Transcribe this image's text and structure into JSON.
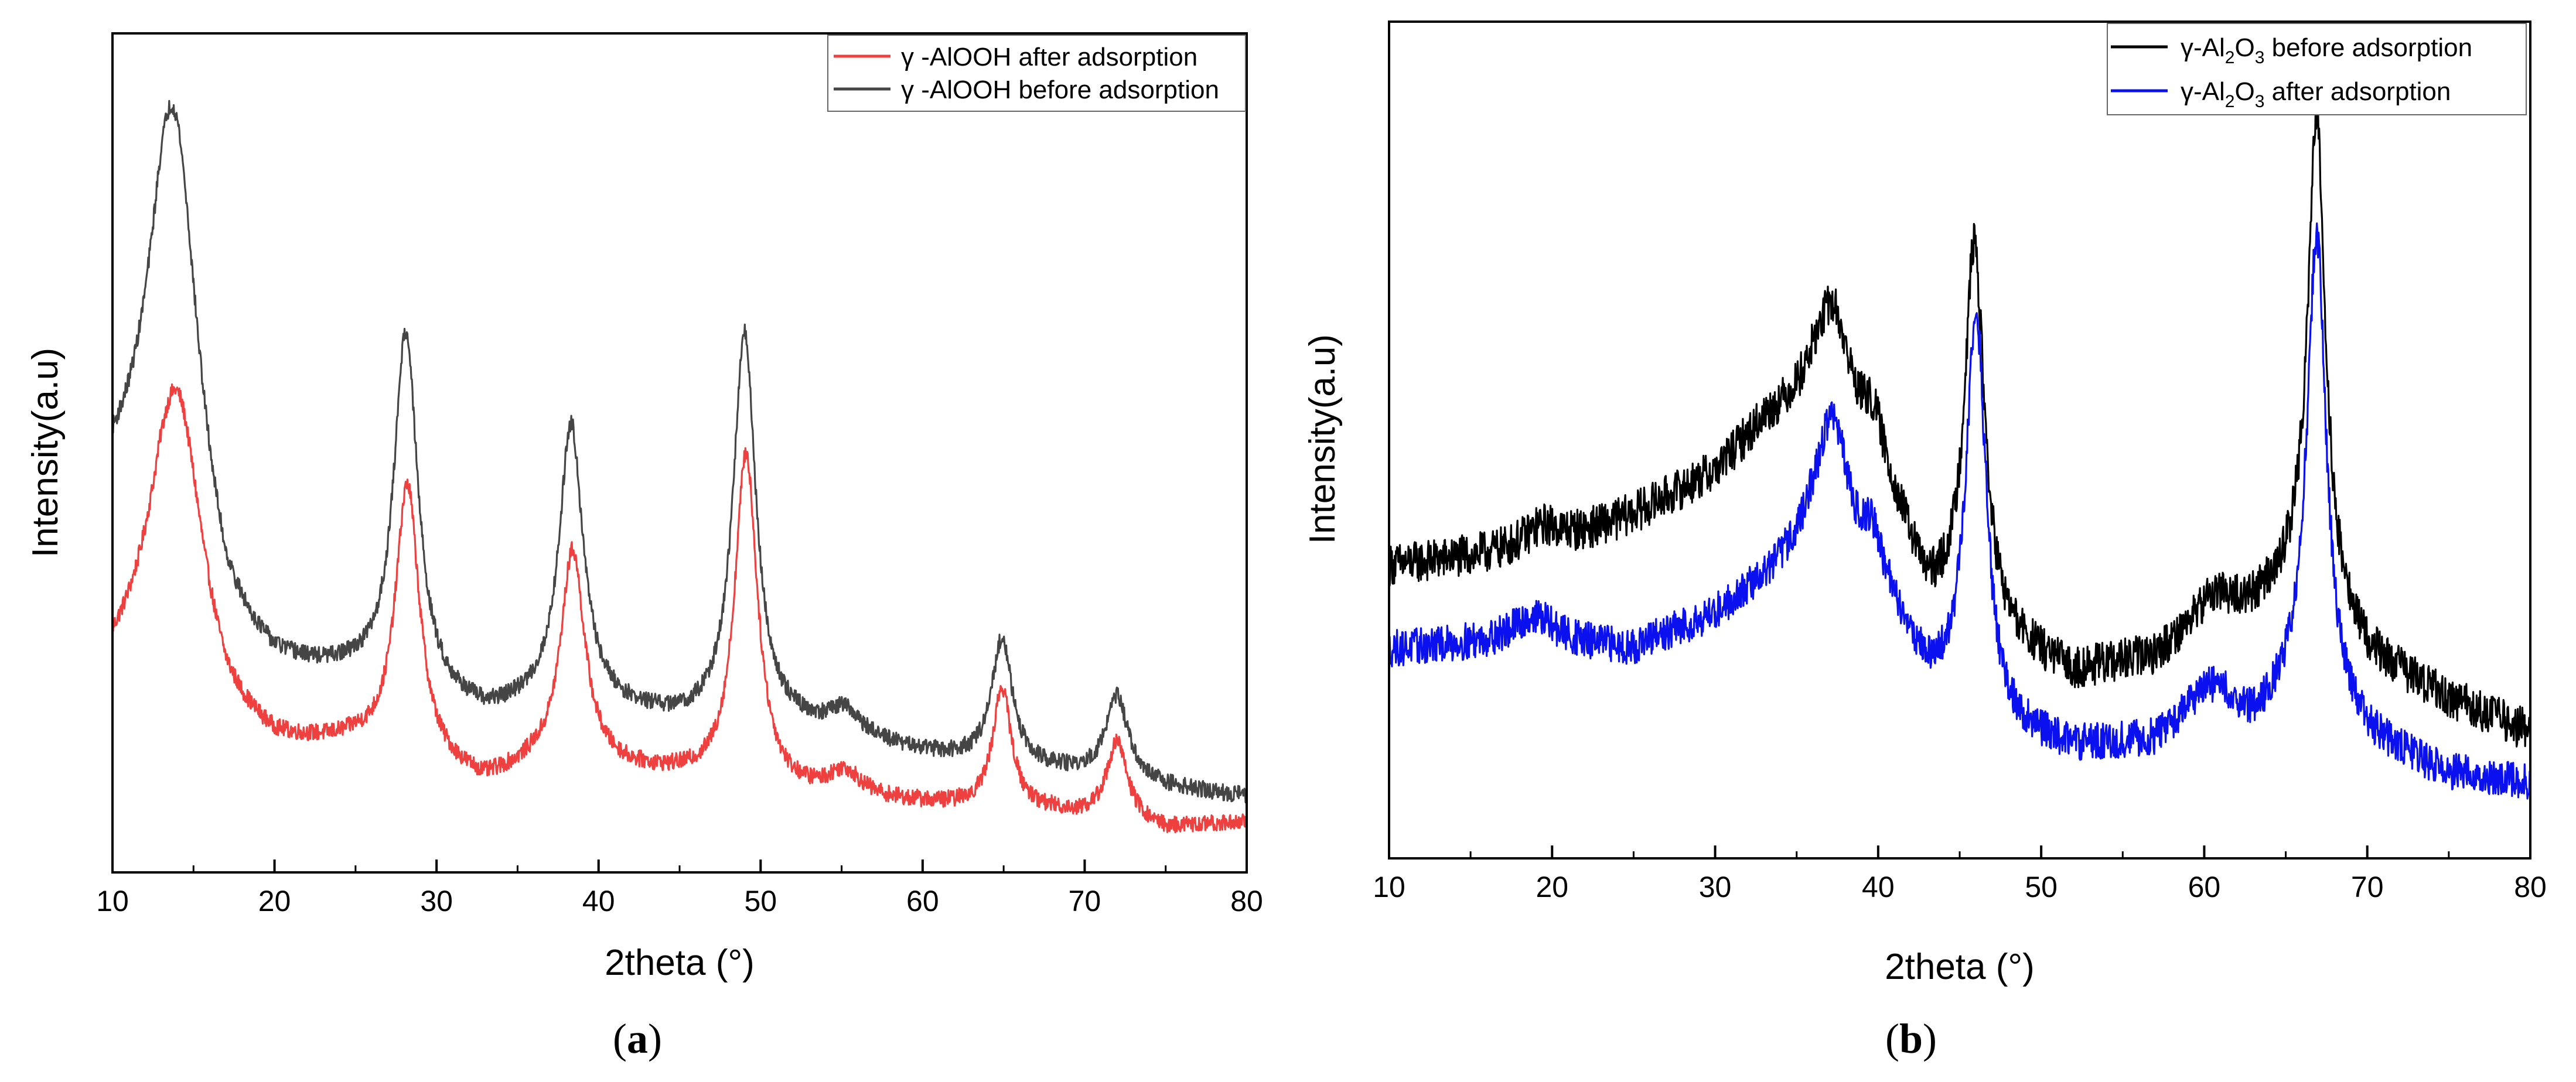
{
  "chart_data": [
    {
      "type": "line",
      "panel_label_open": "(",
      "panel_label_letter": "a",
      "panel_label_close": ")",
      "xlabel": "2theta (°)",
      "ylabel": "Intensity(a.u)",
      "xlim": [
        10,
        80
      ],
      "ylim": [
        0,
        100
      ],
      "xticks": [
        10,
        20,
        30,
        40,
        50,
        60,
        70,
        80
      ],
      "yticks_shown": false,
      "legend_position": "top-right",
      "series": [
        {
          "name": "γ -AlOOH after adsorption",
          "color": "#ef4040",
          "baseline": [
            [
              10,
              23
            ],
            [
              13,
              26
            ],
            [
              17,
              16
            ],
            [
              20,
              14
            ],
            [
              25,
              14.5
            ],
            [
              33,
              10
            ],
            [
              36,
              12
            ],
            [
              40,
              12
            ],
            [
              45,
              11
            ],
            [
              52,
              9
            ],
            [
              60,
              8
            ],
            [
              68,
              7
            ],
            [
              75,
              5
            ],
            [
              80,
              6
            ]
          ],
          "peaks": [
            {
              "pos": 14.0,
              "height": 34,
              "width": 1.9
            },
            {
              "pos": 28.2,
              "height": 33,
              "width": 0.9
            },
            {
              "pos": 38.4,
              "height": 26,
              "width": 0.9
            },
            {
              "pos": 49.1,
              "height": 40,
              "width": 0.85
            },
            {
              "pos": 55.2,
              "height": 3,
              "width": 1.2
            },
            {
              "pos": 64.9,
              "height": 14.5,
              "width": 0.7
            },
            {
              "pos": 72.0,
              "height": 9.5,
              "width": 0.8
            }
          ],
          "noise": 1.0
        },
        {
          "name": "γ -AlOOH before adsorption",
          "color": "#454545",
          "baseline": [
            [
              10,
              44
            ],
            [
              13,
              44
            ],
            [
              17,
              26
            ],
            [
              20,
              23
            ],
            [
              25,
              22.5
            ],
            [
              33,
              18
            ],
            [
              36,
              19
            ],
            [
              40,
              19
            ],
            [
              45,
              17.5
            ],
            [
              52,
              17
            ],
            [
              60,
              14
            ],
            [
              68,
              12
            ],
            [
              75,
              10
            ],
            [
              80,
              9
            ]
          ],
          "peaks": [
            {
              "pos": 13.8,
              "height": 51,
              "width": 1.8
            },
            {
              "pos": 28.1,
              "height": 43,
              "width": 0.9
            },
            {
              "pos": 38.3,
              "height": 34,
              "width": 0.9
            },
            {
              "pos": 49.0,
              "height": 47,
              "width": 0.85
            },
            {
              "pos": 55.2,
              "height": 3,
              "width": 1.2
            },
            {
              "pos": 64.9,
              "height": 15,
              "width": 0.75
            },
            {
              "pos": 72.0,
              "height": 10,
              "width": 0.85
            }
          ],
          "noise": 1.0
        }
      ]
    },
    {
      "type": "line",
      "panel_label_open": "(",
      "panel_label_letter": "b",
      "panel_label_close": ")",
      "xlabel": "2theta (°)",
      "ylabel": "Intensity(a.u)",
      "xlim": [
        10,
        80
      ],
      "ylim": [
        0,
        100
      ],
      "xticks": [
        10,
        20,
        30,
        40,
        50,
        60,
        70,
        80
      ],
      "yticks_shown": false,
      "legend_position": "top-right",
      "series": [
        {
          "name": "γ-Al2O3 before adsorption",
          "name_parts": {
            "pre": "γ-Al",
            "s1": "2",
            "mid": "O",
            "s2": "3",
            "post": " before adsorption"
          },
          "color": "#000000",
          "baseline": [
            [
              10,
              35
            ],
            [
              20,
              37
            ],
            [
              25,
              41
            ],
            [
              30,
              46
            ],
            [
              33,
              52
            ],
            [
              36,
              55
            ],
            [
              40,
              48
            ],
            [
              43,
              31
            ],
            [
              47,
              26
            ],
            [
              52,
              22
            ],
            [
              57,
              24
            ],
            [
              60,
              29
            ],
            [
              63,
              30
            ],
            [
              66,
              33
            ],
            [
              70,
              24
            ],
            [
              75,
              19
            ],
            [
              80,
              15
            ]
          ],
          "peaks": [
            {
              "pos": 19.5,
              "height": 3,
              "width": 1.5
            },
            {
              "pos": 37.2,
              "height": 13,
              "width": 1.2
            },
            {
              "pos": 39.6,
              "height": 3,
              "width": 0.6
            },
            {
              "pos": 45.9,
              "height": 46,
              "width": 0.75
            },
            {
              "pos": 60.8,
              "height": 2,
              "width": 1.0
            },
            {
              "pos": 66.9,
              "height": 58,
              "width": 0.65
            }
          ],
          "noise": 2.5
        },
        {
          "name": "γ-Al2O3 after adsorption",
          "name_parts": {
            "pre": "γ-Al",
            "s1": "2",
            "mid": "O",
            "s2": "3",
            "post": " after adsorption"
          },
          "color": "#0a10ee",
          "baseline": [
            [
              10,
              25
            ],
            [
              18,
              26
            ],
            [
              25,
              25
            ],
            [
              30,
              29
            ],
            [
              33,
              33
            ],
            [
              36,
              38
            ],
            [
              40,
              33
            ],
            [
              43,
              21
            ],
            [
              47,
              15
            ],
            [
              52,
              13
            ],
            [
              57,
              14
            ],
            [
              60,
              19
            ],
            [
              63,
              16
            ],
            [
              66,
              20
            ],
            [
              70,
              14
            ],
            [
              75,
              10
            ],
            [
              80,
              9
            ]
          ],
          "peaks": [
            {
              "pos": 19.0,
              "height": 3,
              "width": 1.5
            },
            {
              "pos": 37.2,
              "height": 16,
              "width": 1.1
            },
            {
              "pos": 39.6,
              "height": 4,
              "width": 0.6
            },
            {
              "pos": 46.0,
              "height": 49,
              "width": 0.75
            },
            {
              "pos": 61.0,
              "height": 2,
              "width": 1.0
            },
            {
              "pos": 66.9,
              "height": 56,
              "width": 0.7
            }
          ],
          "noise": 2.2
        }
      ]
    }
  ]
}
